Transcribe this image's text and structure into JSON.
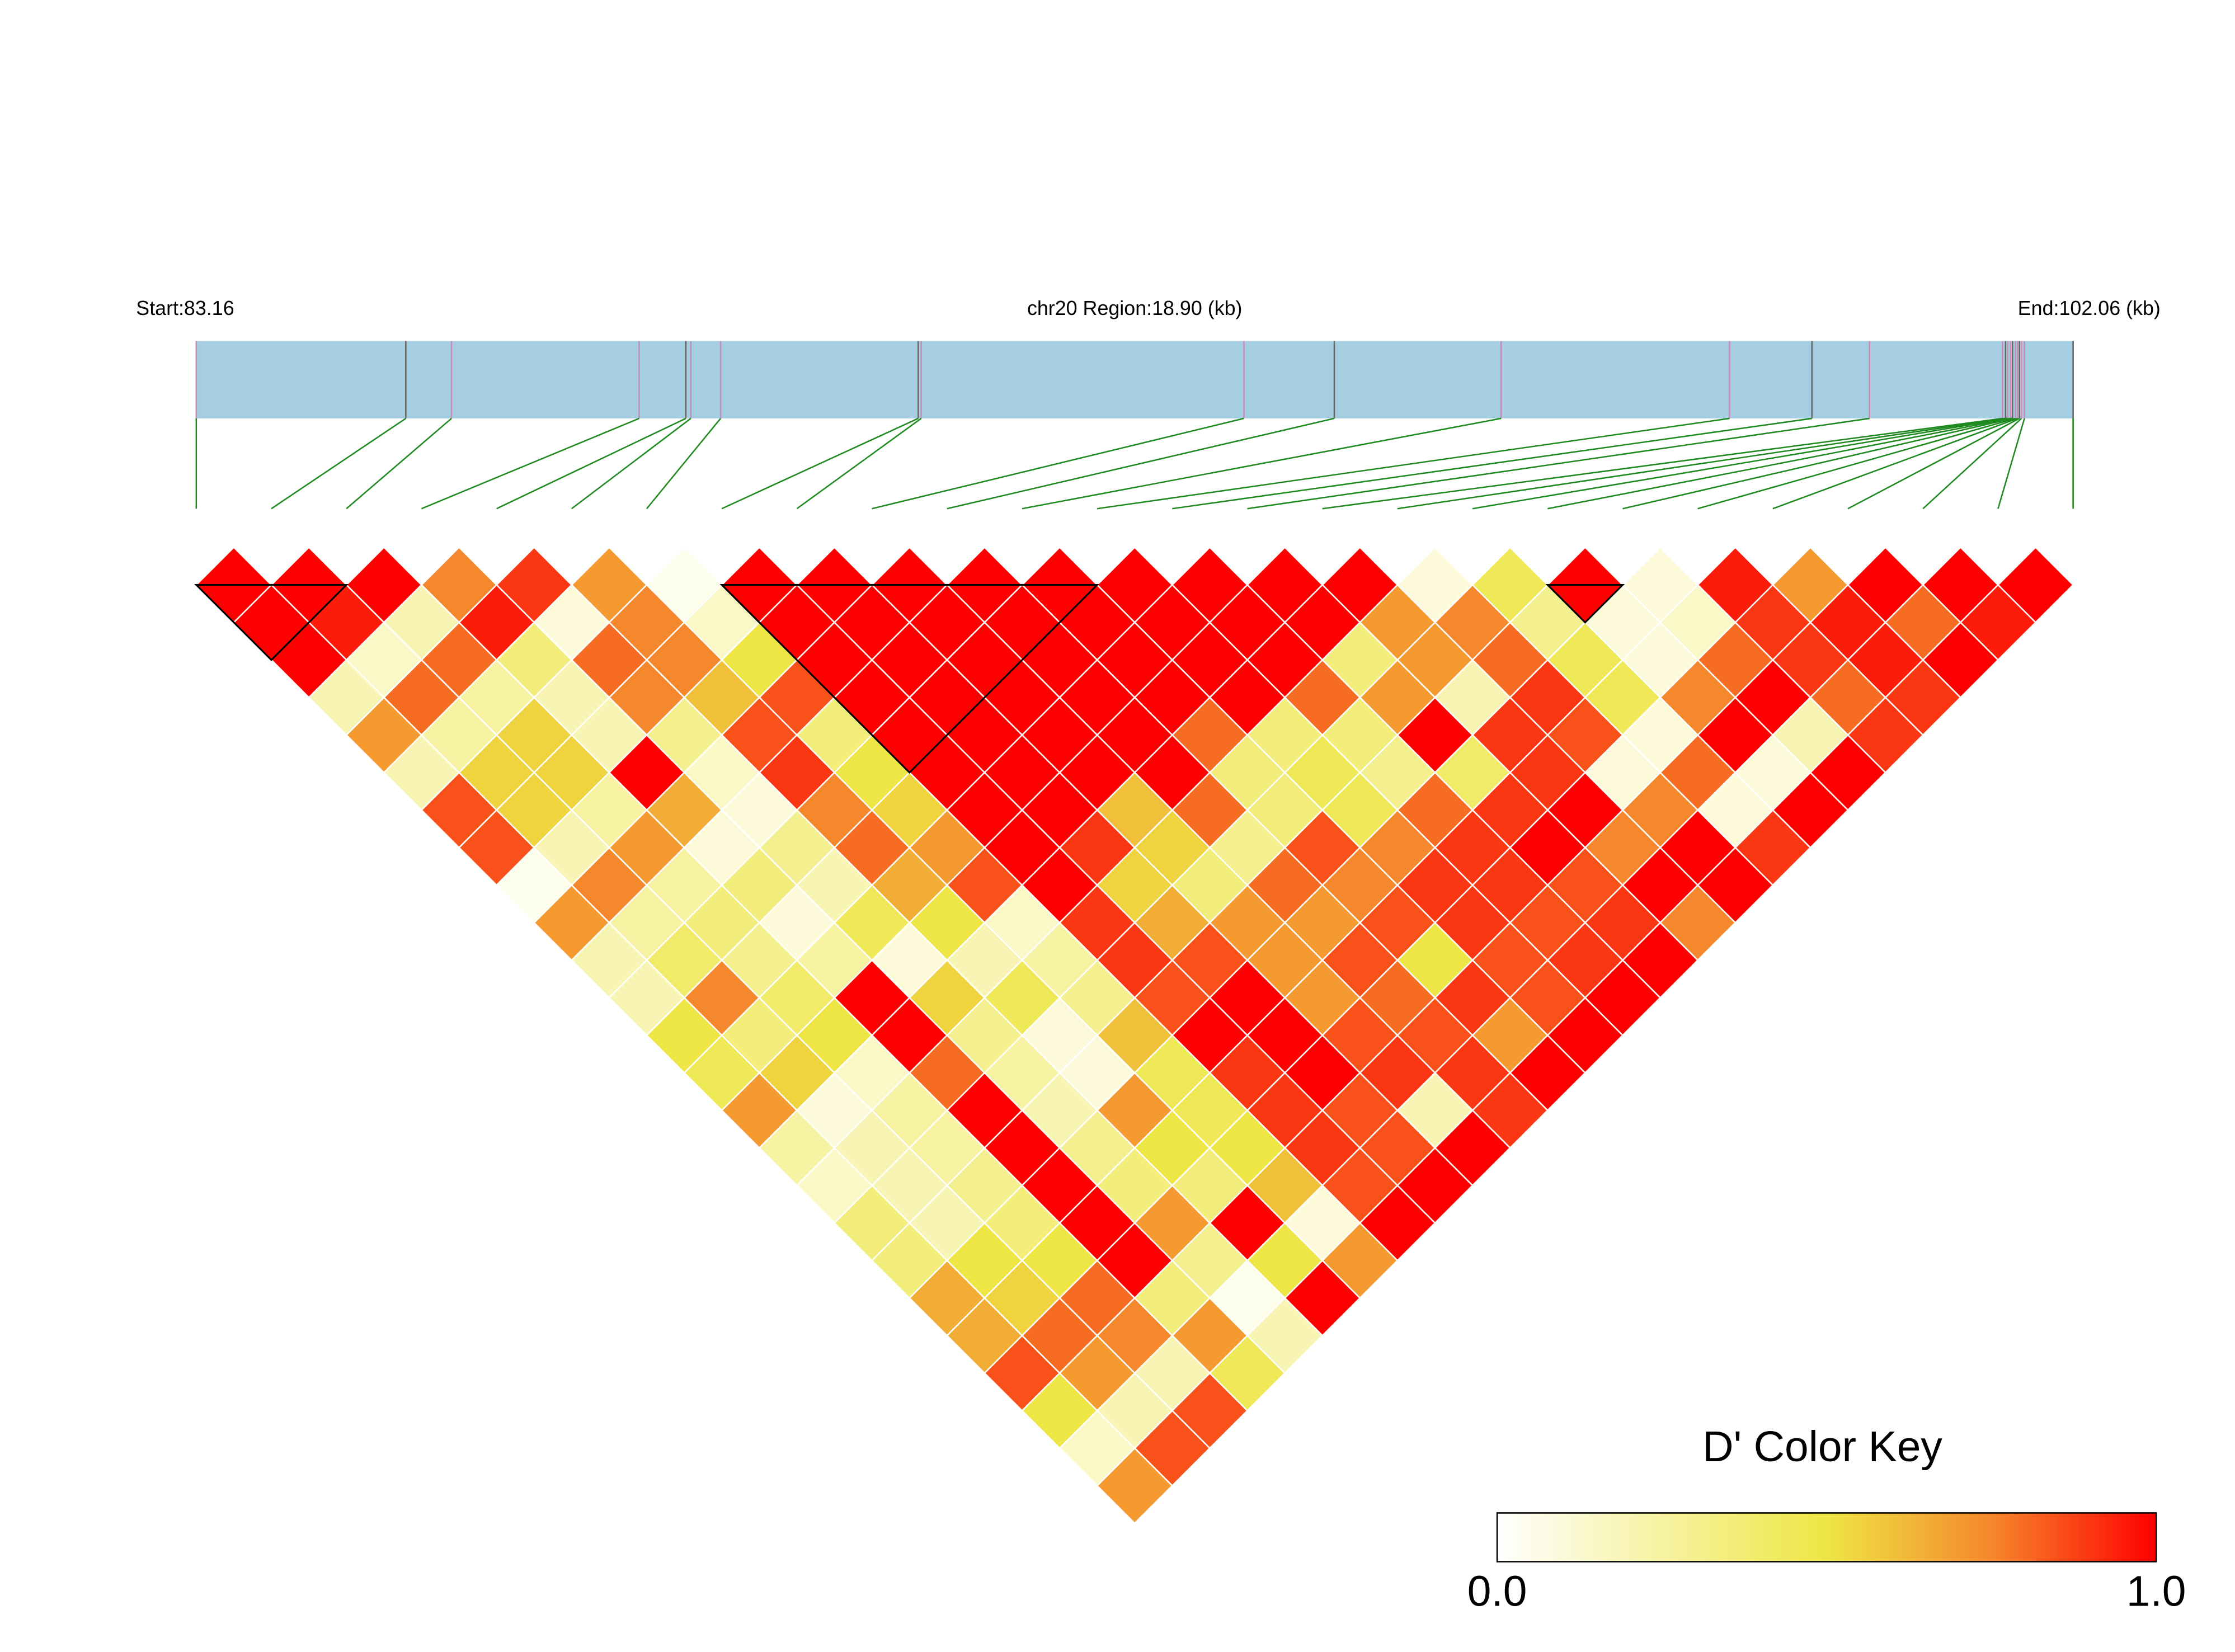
{
  "chart_data": {
    "type": "ld-heatmap",
    "start_label": "Start:83.16",
    "region_label": "chr20 Region:18.90 (kb)",
    "end_label": "End:102.06 (kb)",
    "xlim": [
      83.16,
      102.06
    ],
    "x": [
      83.16,
      85.27,
      85.73,
      87.62,
      88.09,
      88.14,
      88.44,
      90.43,
      90.46,
      93.71,
      94.62,
      96.3,
      98.6,
      99.43,
      100.01,
      101.35,
      101.38,
      101.4,
      101.43,
      101.45,
      101.48,
      101.5,
      101.52,
      101.54,
      101.57,
      102.06
    ],
    "values": [
      [
        1,
        1,
        1,
        0.75,
        0.9,
        0.7,
        0.05,
        1,
        1,
        1,
        1,
        1,
        1,
        1,
        1,
        1,
        0.1,
        0.45,
        1,
        0.1,
        0.95,
        0.7,
        1,
        1,
        1
      ],
      [
        1,
        0.95,
        0.2,
        0.95,
        0.1,
        0.75,
        0.15,
        1,
        1,
        1,
        1,
        1,
        1,
        1,
        1,
        0.7,
        0.75,
        0.3,
        0.1,
        0.15,
        0.9,
        0.95,
        0.8,
        0.95
      ],
      [
        1,
        0.15,
        0.8,
        0.35,
        0.8,
        0.75,
        0.5,
        1,
        1,
        1,
        1,
        1,
        1,
        1,
        0.35,
        0.7,
        0.8,
        0.45,
        0.1,
        0.8,
        0.9,
        0.95,
        1
      ],
      [
        0.2,
        0.8,
        0.25,
        0.2,
        0.75,
        0.6,
        0.85,
        1,
        1,
        1,
        1,
        1,
        1,
        0.8,
        0.7,
        0.2,
        0.9,
        0.45,
        0.75,
        1,
        0.8,
        0.9
      ],
      [
        0.7,
        0.25,
        0.55,
        0.2,
        0.3,
        0.85,
        0.35,
        1,
        1,
        1,
        1,
        0.8,
        0.35,
        0.35,
        1,
        0.9,
        0.85,
        0.1,
        1,
        0.2,
        0.9
      ],
      [
        0.2,
        0.55,
        0.55,
        1,
        0.15,
        0.9,
        0.5,
        1,
        1,
        1,
        1,
        0.35,
        0.45,
        0.3,
        0.4,
        0.9,
        0.1,
        0.8,
        0.1,
        1
      ],
      [
        0.85,
        0.55,
        0.25,
        0.65,
        0.1,
        0.75,
        0.55,
        1,
        1,
        0.6,
        0.8,
        0.35,
        0.45,
        0.8,
        0.9,
        1,
        0.75,
        0.1,
        1
      ],
      [
        0.85,
        0.2,
        0.7,
        0.1,
        0.3,
        0.8,
        0.7,
        1,
        0.9,
        0.55,
        0.3,
        0.85,
        0.75,
        0.9,
        1,
        0.75,
        1,
        0.9
      ],
      [
        0.05,
        0.75,
        0.25,
        0.35,
        0.2,
        0.65,
        0.85,
        1,
        0.55,
        0.35,
        0.8,
        0.75,
        0.9,
        0.9,
        0.85,
        1,
        1
      ],
      [
        0.7,
        0.25,
        0.35,
        0.1,
        0.45,
        0.5,
        0.15,
        0.9,
        0.65,
        0.7,
        0.7,
        0.85,
        0.9,
        0.85,
        0.9,
        0.75
      ],
      [
        0.2,
        0.4,
        0.3,
        0.25,
        0.1,
        0.2,
        0.25,
        0.9,
        0.85,
        0.7,
        0.85,
        0.5,
        0.85,
        0.9,
        1
      ],
      [
        0.2,
        0.75,
        0.4,
        1,
        0.55,
        0.45,
        0.3,
        0.85,
        1,
        0.7,
        0.8,
        0.9,
        0.85,
        1
      ],
      [
        0.5,
        0.35,
        0.5,
        1,
        0.3,
        0.1,
        0.6,
        1,
        1,
        0.85,
        0.85,
        0.7,
        1
      ],
      [
        0.45,
        0.55,
        0.15,
        0.8,
        0.25,
        0.1,
        0.45,
        0.9,
        1,
        0.9,
        0.9,
        1
      ],
      [
        0.7,
        0.1,
        0.25,
        1,
        0.2,
        0.7,
        0.45,
        0.9,
        0.85,
        0.2,
        0.9
      ],
      [
        0.25,
        0.2,
        0.25,
        1,
        0.3,
        0.5,
        0.5,
        0.9,
        0.85,
        1
      ],
      [
        0.15,
        0.2,
        0.3,
        1,
        0.35,
        0.35,
        0.6,
        0.85,
        1
      ],
      [
        0.35,
        0.2,
        0.35,
        1,
        0.7,
        1,
        0.1,
        1
      ],
      [
        0.35,
        0.5,
        0.5,
        1,
        0.3,
        0.5,
        0.7
      ],
      [
        0.65,
        0.55,
        0.8,
        0.35,
        0.05,
        1
      ],
      [
        0.65,
        0.8,
        0.75,
        0.7,
        0.2
      ],
      [
        0.85,
        0.7,
        0.2,
        0.45
      ],
      [
        0.5,
        0.2,
        0.85
      ],
      [
        0.15,
        0.85
      ],
      [
        0.7
      ]
    ],
    "blocks": [
      [
        0,
        2
      ],
      [
        7,
        12
      ],
      [
        18,
        19
      ]
    ],
    "region_color": "#a6cee3",
    "site_color": "#c98db5",
    "link_color": "#1f8a1f",
    "colorscale": [
      [
        0,
        "#ffffff"
      ],
      [
        0.5,
        "#eee644"
      ],
      [
        0.75,
        "#f5872c"
      ],
      [
        1,
        "#ff0000"
      ]
    ],
    "colorbar": {
      "title": "D' Color Key",
      "clim": [
        0,
        1
      ],
      "ticks": [
        {
          "value": 0,
          "label": "0.0"
        },
        {
          "value": 1,
          "label": "1.0"
        }
      ]
    }
  }
}
